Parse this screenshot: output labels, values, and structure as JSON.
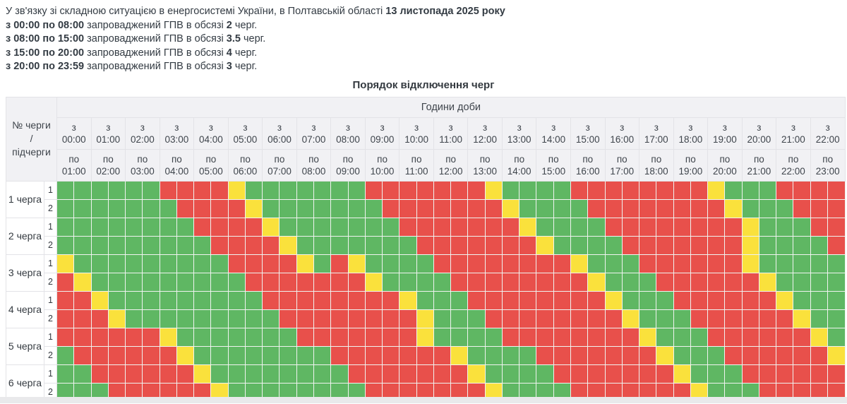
{
  "intro": {
    "lines": [
      [
        {
          "t": "У зв'язку зі складною ситуацією в енергосистемі України, в Полтавській області ",
          "b": false
        },
        {
          "t": "13 листопада 2025 року",
          "b": true
        }
      ],
      [
        {
          "t": "з 00:00 по 08:00",
          "b": true
        },
        {
          "t": " запроваджений ГПВ в обсязі ",
          "b": false
        },
        {
          "t": "2",
          "b": true
        },
        {
          "t": " черг.",
          "b": false
        }
      ],
      [
        {
          "t": "з 08:00 по 15:00",
          "b": true
        },
        {
          "t": " запроваджений ГПВ в обсязі ",
          "b": false
        },
        {
          "t": "3.5",
          "b": true
        },
        {
          "t": " черг.",
          "b": false
        }
      ],
      [
        {
          "t": "з 15:00 по 20:00",
          "b": true
        },
        {
          "t": " запроваджений ГПВ в обсязі ",
          "b": false
        },
        {
          "t": "4",
          "b": true
        },
        {
          "t": " черг.",
          "b": false
        }
      ],
      [
        {
          "t": "з 20:00 по 23:59",
          "b": true
        },
        {
          "t": " запроваджений ГПВ в обсязі ",
          "b": false
        },
        {
          "t": "3",
          "b": true
        },
        {
          "t": " черг.",
          "b": false
        }
      ]
    ]
  },
  "table": {
    "title": "Порядок відключення черг",
    "corner_lines": [
      "№ черги",
      "/",
      "підчерги"
    ],
    "hours_header": "Години доби",
    "from_word": "з",
    "to_word": "по",
    "columns": [
      {
        "from": "00:00",
        "to": "01:00"
      },
      {
        "from": "01:00",
        "to": "02:00"
      },
      {
        "from": "02:00",
        "to": "03:00"
      },
      {
        "from": "03:00",
        "to": "04:00"
      },
      {
        "from": "04:00",
        "to": "05:00"
      },
      {
        "from": "05:00",
        "to": "06:00"
      },
      {
        "from": "06:00",
        "to": "07:00"
      },
      {
        "from": "07:00",
        "to": "08:00"
      },
      {
        "from": "08:00",
        "to": "09:00"
      },
      {
        "from": "09:00",
        "to": "10:00"
      },
      {
        "from": "10:00",
        "to": "11:00"
      },
      {
        "from": "11:00",
        "to": "12:00"
      },
      {
        "from": "12:00",
        "to": "13:00"
      },
      {
        "from": "13:00",
        "to": "14:00"
      },
      {
        "from": "14:00",
        "to": "15:00"
      },
      {
        "from": "15:00",
        "to": "16:00"
      },
      {
        "from": "16:00",
        "to": "17:00"
      },
      {
        "from": "17:00",
        "to": "18:00"
      },
      {
        "from": "18:00",
        "to": "19:00"
      },
      {
        "from": "19:00",
        "to": "20:00"
      },
      {
        "from": "20:00",
        "to": "21:00"
      },
      {
        "from": "21:00",
        "to": "22:00"
      },
      {
        "from": "22:00",
        "to": "23:00"
      }
    ],
    "colors": {
      "G": "#5fb763",
      "R": "#e8504b",
      "Y": "#fae13c"
    },
    "queues": [
      {
        "label": "1 черга",
        "subs": [
          {
            "n": "1",
            "cells": "GGGGGGRRRRYGGGGGGGRRRRRRRYGGGGRRRRRRRRYGGGRRRR"
          },
          {
            "n": "2",
            "cells": "GGGGGGGRRRRYGGGGGGGRRRRRRRYGGGGRRRRRRRRYGGGRRR"
          }
        ]
      },
      {
        "label": "2 черга",
        "subs": [
          {
            "n": "1",
            "cells": "GGGGGGGGRRRRYGGGGGGGRRRRRRRYGGGGRRRRRRRRYGGGRR"
          },
          {
            "n": "2",
            "cells": "GGGGGGGGGRRRRYGGGGGGGRRRRRRRYGGGGRRRRRRRYGGGGR"
          }
        ]
      },
      {
        "label": "3 черга",
        "subs": [
          {
            "n": "1",
            "cells": "YGGGGGGGGGRRRRYGRYGGGGRRRRRRRRYGGGRRRRRRYGGGGG"
          },
          {
            "n": "2",
            "cells": "RYGGGGGGGGGRRRRRRRYGGGGRRRRRRRRYGGGRRRRRRYGGGG"
          }
        ]
      },
      {
        "label": "4 черга",
        "subs": [
          {
            "n": "1",
            "cells": "RRYGGGGGGGGGRRRRRRRRYGGGRRRRRRRRYGGGRRRRRRYGGG"
          },
          {
            "n": "2",
            "cells": "RRRYGGGGGGGGGRRRRRRRRYGGGRRRRRRRRYGGGRRRRRRYGG"
          }
        ]
      },
      {
        "label": "5 черга",
        "subs": [
          {
            "n": "1",
            "cells": "RRRRRRYGGGGGGGRRRRRRRYGGGGRRRRRRRRYGGGRRRRRRYG"
          },
          {
            "n": "2",
            "cells": "GRRRRRRYGGGGGGGGRRRRRRRYGGGGRRRRRRRYGGGRRRRRRY"
          }
        ]
      },
      {
        "label": "6 черга",
        "subs": [
          {
            "n": "1",
            "cells": "GGRRRRRRYGGGGGGGGRRRRRRRYGGGGRRRRRRRYGGGRRRRRR"
          },
          {
            "n": "2",
            "cells": "GGGRRRRRRYGGGGGGGGRRRRRRRYGGGGRRRRRRRYGGGRRRRR"
          }
        ]
      }
    ]
  }
}
